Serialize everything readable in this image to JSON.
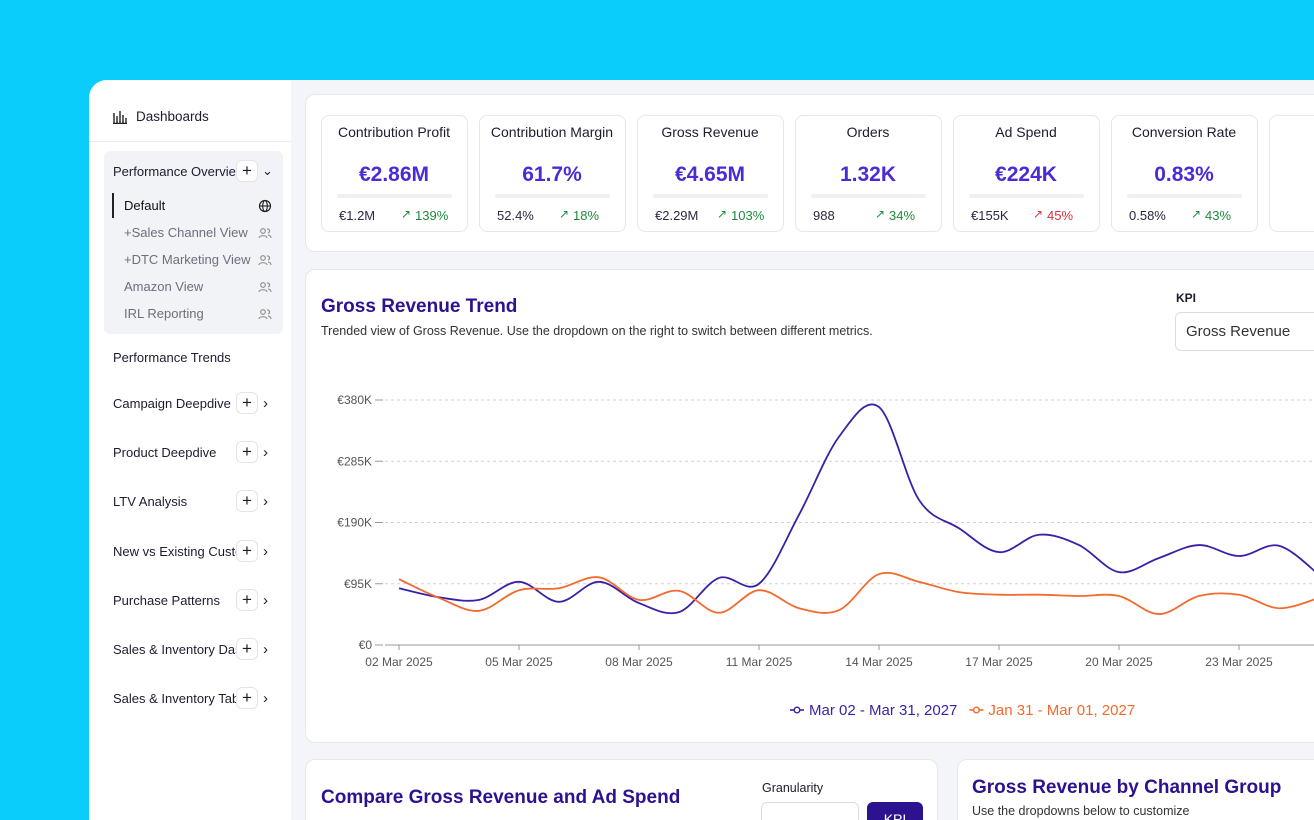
{
  "sidebar": {
    "title": "Dashboards",
    "active_group": {
      "label": "Performance Overview",
      "items": [
        "Default",
        "+Sales Channel View",
        "+DTC Marketing View",
        "Amazon View",
        "IRL Reporting"
      ]
    },
    "trends": "Performance Trends",
    "groups": [
      "Campaign Deepdive",
      "Product Deepdive",
      "LTV Analysis",
      "New vs Existing Customers",
      "Purchase Patterns",
      "Sales & Inventory Dashboard",
      "Sales & Inventory Table"
    ]
  },
  "kpis": [
    {
      "title": "Contribution Profit",
      "value": "€2.86M",
      "previous": "€1.2M",
      "change": "139%",
      "color": "#1f8a3b"
    },
    {
      "title": "Contribution Margin",
      "value": "61.7%",
      "previous": "52.4%",
      "change": "18%",
      "color": "#1f8a3b"
    },
    {
      "title": "Gross Revenue",
      "value": "€4.65M",
      "previous": "€2.29M",
      "change": "103%",
      "color": "#1f8a3b"
    },
    {
      "title": "Orders",
      "value": "1.32K",
      "previous": "988",
      "change": "34%",
      "color": "#1f8a3b"
    },
    {
      "title": "Ad Spend",
      "value": "€224K",
      "previous": "€155K",
      "change": "45%",
      "color": "#e0303a"
    },
    {
      "title": "Conversion Rate",
      "value": "0.83%",
      "previous": "0.58%",
      "change": "43%",
      "color": "#1f8a3b"
    }
  ],
  "trend": {
    "title": "Gross Revenue Trend",
    "subtitle": "Trended view of Gross Revenue. Use the dropdown on the right to switch between different metrics.",
    "kpi_label": "KPI",
    "kpi_selected": "Gross Revenue",
    "chart": {
      "type": "line",
      "categories": [
        "02 Mar 2025",
        null,
        null,
        "05 Mar 2025",
        null,
        null,
        "08 Mar 2025",
        null,
        null,
        "11 Mar 2025",
        null,
        null,
        "14 Mar 2025",
        null,
        null,
        "17 Mar 2025",
        null,
        null,
        "20 Mar 2025",
        null,
        null,
        "23 Mar 2025",
        null,
        null
      ],
      "series": [
        {
          "name": "Mar 02 - Mar 31, 2027",
          "color": "#3b1fa8",
          "values": [
            88000,
            74000,
            70000,
            98000,
            67000,
            98000,
            65000,
            51000,
            104000,
            95000,
            202000,
            323000,
            369000,
            225000,
            181000,
            144000,
            171000,
            155000,
            113000,
            135000,
            155000,
            138000,
            154000,
            109000
          ]
        },
        {
          "name": "Jan 31 - Mar 01, 2027",
          "color": "#f26a2e",
          "values": [
            102000,
            73000,
            53000,
            85000,
            88000,
            105000,
            70000,
            84000,
            50000,
            85000,
            57000,
            54000,
            110000,
            98000,
            82000,
            78000,
            78000,
            76000,
            76000,
            48000,
            76000,
            78000,
            57000,
            73000
          ]
        }
      ],
      "ylim": [
        0,
        380000
      ],
      "yticks": [
        {
          "value": 0,
          "label": "€0"
        },
        {
          "value": 95000,
          "label": "€95K"
        },
        {
          "value": 190000,
          "label": "€190K"
        },
        {
          "value": 285000,
          "label": "€285K"
        },
        {
          "value": 380000,
          "label": "€380K"
        }
      ],
      "grid": true,
      "legend": "bottom"
    }
  },
  "compare": {
    "title": "Compare Gross Revenue and Ad Spend",
    "granularity_label": "Granularity",
    "button": "KPI"
  },
  "channel": {
    "title": "Gross Revenue by Channel Group",
    "subtitle": "Use the dropdowns below to customize"
  }
}
